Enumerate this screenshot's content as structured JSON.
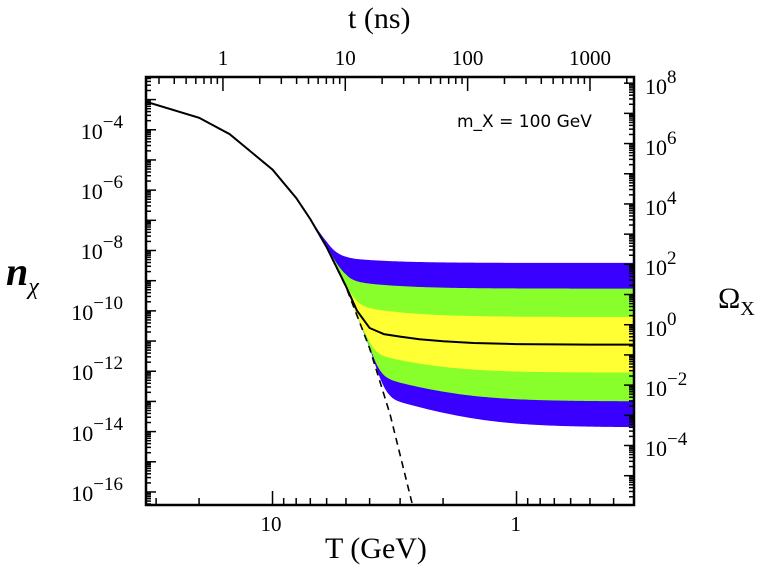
{
  "chart_data": {
    "type": "line",
    "annotation": "m_X = 100 GeV",
    "annotation_parts": {
      "m": "m",
      "sub": "X",
      "rest": "= 100 GeV"
    },
    "x_bottom": {
      "label": "T (GeV)",
      "scale": "log",
      "reversed": true,
      "lim": [
        33,
        0.33
      ],
      "tick_labels": [
        "10",
        "1"
      ],
      "ticks": [
        10,
        1
      ]
    },
    "x_top": {
      "label": "t (ns)",
      "scale": "log",
      "lim": [
        0.235,
        2290
      ],
      "tick_labels": [
        "1",
        "10",
        "100",
        "1000"
      ],
      "ticks": [
        1,
        10,
        100,
        1000
      ]
    },
    "y_left": {
      "label_main": "n",
      "label_sub": "χ",
      "scale": "log",
      "lim": [
        3.7e-17,
        0.0056
      ],
      "ticks": [
        0.0001,
        1e-06,
        1e-08,
        1e-10,
        1e-12,
        1e-14,
        1e-16
      ],
      "tick_labels": [
        {
          "base": "10",
          "exp": "−4"
        },
        {
          "base": "10",
          "exp": "−6"
        },
        {
          "base": "10",
          "exp": "−8"
        },
        {
          "base": "10",
          "exp": "−10"
        },
        {
          "base": "10",
          "exp": "−12"
        },
        {
          "base": "10",
          "exp": "−14"
        },
        {
          "base": "10",
          "exp": "−16"
        }
      ]
    },
    "y_right": {
      "label_main": "Ω",
      "label_sub": "X",
      "scale": "log",
      "lim": [
        1.07e-06,
        160000000.0
      ],
      "ticks": [
        100000000.0,
        1000000.0,
        10000.0,
        100.0,
        1,
        0.01,
        0.0001
      ],
      "tick_labels": [
        {
          "base": "10",
          "exp": "8"
        },
        {
          "base": "10",
          "exp": "6"
        },
        {
          "base": "10",
          "exp": "4"
        },
        {
          "base": "10",
          "exp": "2"
        },
        {
          "base": "10",
          "exp": "0"
        },
        {
          "base": "10",
          "exp": "−2"
        },
        {
          "base": "10",
          "exp": "−4"
        }
      ]
    },
    "series": [
      {
        "style": "dashed",
        "color": "#000000",
        "T": [
          33,
          20,
          15,
          10,
          8,
          7,
          6,
          5,
          4,
          3.3,
          2.62
        ],
        "n": [
          0.00085,
          0.00025,
          7.2e-05,
          4.8e-06,
          5.5e-07,
          1.1e-07,
          1.3e-08,
          6.2e-10,
          5.8e-12,
          3.8e-14,
          2e-17
        ]
      },
      {
        "style": "solid",
        "color": "#000000",
        "T": [
          33,
          20,
          15,
          10,
          8,
          7,
          6,
          5,
          4.5,
          4,
          3.5,
          3,
          2.5,
          2,
          1.5,
          1,
          0.5,
          0.33
        ],
        "n": [
          0.00085,
          0.00025,
          7.2e-05,
          4.8e-06,
          5.5e-07,
          1.1e-07,
          1.3e-08,
          6.5e-10,
          1e-10,
          2.7e-11,
          1.7e-11,
          1.4e-11,
          1.15e-11,
          9.8e-12,
          8.6e-12,
          7.9e-12,
          7.6e-12,
          7.6e-12
        ]
      }
    ],
    "bands": [
      {
        "color": "#3a00ff",
        "omega_upper": 112,
        "omega_lower": 0.0004
      },
      {
        "color": "#88ff2a",
        "omega_upper": 15.8,
        "omega_lower": 0.0029
      },
      {
        "color": "#ffff33",
        "omega_upper": 1.82,
        "omega_lower": 0.026
      }
    ],
    "central_omega": 0.219
  }
}
